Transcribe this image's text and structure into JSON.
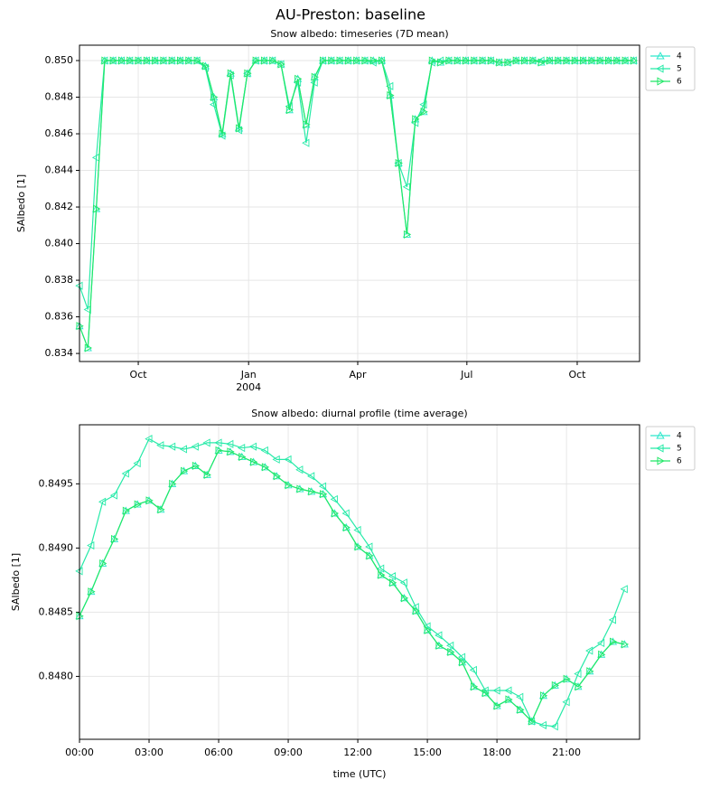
{
  "title": "AU-Preston: baseline",
  "chart_data": [
    {
      "type": "line",
      "title": "Snow albedo: timeseries (7D mean)",
      "ylabel": "SAlbedo [1]",
      "x": [
        "2003-08-13",
        "2003-08-20",
        "2003-08-27",
        "2003-09-03",
        "2003-09-10",
        "2003-09-17",
        "2003-09-24",
        "2003-10-01",
        "2003-10-08",
        "2003-10-15",
        "2003-10-22",
        "2003-10-29",
        "2003-11-05",
        "2003-11-12",
        "2003-11-19",
        "2003-11-26",
        "2003-12-03",
        "2003-12-10",
        "2003-12-17",
        "2003-12-24",
        "2003-12-31",
        "2004-01-07",
        "2004-01-14",
        "2004-01-21",
        "2004-01-28",
        "2004-02-04",
        "2004-02-11",
        "2004-02-18",
        "2004-02-25",
        "2004-03-03",
        "2004-03-10",
        "2004-03-17",
        "2004-03-24",
        "2004-03-31",
        "2004-04-07",
        "2004-04-14",
        "2004-04-21",
        "2004-04-28",
        "2004-05-05",
        "2004-05-12",
        "2004-05-19",
        "2004-05-26",
        "2004-06-02",
        "2004-06-09",
        "2004-06-16",
        "2004-06-23",
        "2004-06-30",
        "2004-07-07",
        "2004-07-14",
        "2004-07-21",
        "2004-07-28",
        "2004-08-04",
        "2004-08-11",
        "2004-08-18",
        "2004-08-25",
        "2004-09-01",
        "2004-09-08",
        "2004-09-15",
        "2004-09-22",
        "2004-09-29",
        "2004-10-06",
        "2004-10-13",
        "2004-10-20",
        "2004-10-27",
        "2004-11-03",
        "2004-11-10",
        "2004-11-17"
      ],
      "series": [
        {
          "name": "4",
          "color": "#2ee8cc",
          "marker": "up",
          "values": [
            0.8355,
            0.8343,
            0.8419,
            0.85,
            0.85,
            0.85,
            0.85,
            0.85,
            0.85,
            0.85,
            0.85,
            0.85,
            0.85,
            0.85,
            0.85,
            0.8497,
            0.848,
            0.846,
            0.8493,
            0.8463,
            0.8493,
            0.85,
            0.85,
            0.85,
            0.8498,
            0.8473,
            0.849,
            0.8465,
            0.8491,
            0.85,
            0.85,
            0.85,
            0.85,
            0.85,
            0.85,
            0.85,
            0.85,
            0.8481,
            0.8444,
            0.8405,
            0.8468,
            0.8472,
            0.85,
            0.8499,
            0.85,
            0.85,
            0.85,
            0.85,
            0.85,
            0.85,
            0.8499,
            0.8499,
            0.85,
            0.85,
            0.85,
            0.8499,
            0.85,
            0.85,
            0.85,
            0.85,
            0.85,
            0.85,
            0.85,
            0.85,
            0.85,
            0.85,
            0.85
          ]
        },
        {
          "name": "5",
          "color": "#26eaa8",
          "marker": "left",
          "values": [
            0.8377,
            0.8364,
            0.8447,
            0.85,
            0.85,
            0.85,
            0.85,
            0.85,
            0.85,
            0.85,
            0.85,
            0.85,
            0.85,
            0.85,
            0.85,
            0.8496,
            0.8476,
            0.8459,
            0.8492,
            0.8462,
            0.8493,
            0.85,
            0.85,
            0.85,
            0.8498,
            0.8475,
            0.8488,
            0.8455,
            0.8488,
            0.85,
            0.85,
            0.85,
            0.85,
            0.85,
            0.85,
            0.8499,
            0.85,
            0.8486,
            0.8444,
            0.8431,
            0.8466,
            0.8476,
            0.8499,
            0.85,
            0.85,
            0.85,
            0.85,
            0.85,
            0.85,
            0.85,
            0.8499,
            0.8499,
            0.85,
            0.85,
            0.85,
            0.85,
            0.85,
            0.85,
            0.85,
            0.85,
            0.85,
            0.85,
            0.85,
            0.85,
            0.85,
            0.85,
            0.85
          ]
        },
        {
          "name": "6",
          "color": "#22e868",
          "marker": "right",
          "values": [
            0.8355,
            0.8343,
            0.8419,
            0.85,
            0.85,
            0.85,
            0.85,
            0.85,
            0.85,
            0.85,
            0.85,
            0.85,
            0.85,
            0.85,
            0.85,
            0.8497,
            0.848,
            0.846,
            0.8493,
            0.8463,
            0.8493,
            0.85,
            0.85,
            0.85,
            0.8498,
            0.8473,
            0.849,
            0.8465,
            0.8491,
            0.85,
            0.85,
            0.85,
            0.85,
            0.85,
            0.85,
            0.85,
            0.85,
            0.8481,
            0.8444,
            0.8405,
            0.8468,
            0.8472,
            0.85,
            0.8499,
            0.85,
            0.85,
            0.85,
            0.85,
            0.85,
            0.85,
            0.8499,
            0.8499,
            0.85,
            0.85,
            0.85,
            0.8499,
            0.85,
            0.85,
            0.85,
            0.85,
            0.85,
            0.85,
            0.85,
            0.85,
            0.85,
            0.85,
            0.85
          ]
        }
      ],
      "xlim": [
        "2003-08-13",
        "2004-11-22"
      ],
      "xticks": [
        {
          "value": "2003-10-01",
          "label": "Oct"
        },
        {
          "value": "2004-01-01",
          "label": "Jan",
          "year": "2004"
        },
        {
          "value": "2004-04-01",
          "label": "Apr"
        },
        {
          "value": "2004-07-01",
          "label": "Jul"
        },
        {
          "value": "2004-10-01",
          "label": "Oct"
        }
      ],
      "ylim": [
        0.83356,
        0.85084
      ],
      "yticks": [
        0.834,
        0.836,
        0.838,
        {
          "value": 0.84,
          "label": "0.840"
        },
        0.842,
        0.844,
        0.846,
        0.848,
        {
          "value": 0.85,
          "label": "0.850"
        }
      ],
      "grid": true,
      "legend": "outside-upper-right"
    },
    {
      "type": "line",
      "title": "Snow albedo: diurnal profile (time average)",
      "ylabel": "SAlbedo [1]",
      "xlabel": "time (UTC)",
      "x": [
        0,
        0.5,
        1,
        1.5,
        2,
        2.5,
        3,
        3.5,
        4,
        4.5,
        5,
        5.5,
        6,
        6.5,
        7,
        7.5,
        8,
        8.5,
        9,
        9.5,
        10,
        10.5,
        11,
        11.5,
        12,
        12.5,
        13,
        13.5,
        14,
        14.5,
        15,
        15.5,
        16,
        16.5,
        17,
        17.5,
        18,
        18.5,
        19,
        19.5,
        20,
        20.5,
        21,
        21.5,
        22,
        22.5,
        23,
        23.5
      ],
      "series": [
        {
          "name": "4",
          "color": "#2ee8cc",
          "marker": "up",
          "values": [
            0.84847,
            0.84866,
            0.84888,
            0.84907,
            0.84929,
            0.84934,
            0.84937,
            0.8493,
            0.8495,
            0.8496,
            0.84964,
            0.84957,
            0.84976,
            0.84975,
            0.84971,
            0.84967,
            0.84963,
            0.84956,
            0.84949,
            0.84946,
            0.84944,
            0.84942,
            0.84927,
            0.84916,
            0.84901,
            0.84894,
            0.84879,
            0.84873,
            0.84861,
            0.84851,
            0.84836,
            0.84824,
            0.84819,
            0.84811,
            0.84792,
            0.84787,
            0.84777,
            0.84782,
            0.84774,
            0.84765,
            0.84785,
            0.84793,
            0.84798,
            0.84792,
            0.84804,
            0.84817,
            0.84827,
            0.84825
          ]
        },
        {
          "name": "5",
          "color": "#26eaa8",
          "marker": "left",
          "values": [
            0.84882,
            0.84902,
            0.84936,
            0.84941,
            0.84958,
            0.84966,
            0.84985,
            0.8498,
            0.84979,
            0.84977,
            0.84979,
            0.84982,
            0.84982,
            0.84981,
            0.84978,
            0.84979,
            0.84976,
            0.84969,
            0.84969,
            0.84961,
            0.84956,
            0.84948,
            0.84938,
            0.84927,
            0.84914,
            0.84901,
            0.84884,
            0.84878,
            0.84873,
            0.84854,
            0.84839,
            0.84832,
            0.84824,
            0.84815,
            0.84805,
            0.84789,
            0.84789,
            0.84789,
            0.84784,
            0.84765,
            0.84762,
            0.84761,
            0.8478,
            0.84802,
            0.8482,
            0.84826,
            0.84844,
            0.84868
          ]
        },
        {
          "name": "6",
          "color": "#22e868",
          "marker": "right",
          "values": [
            0.84847,
            0.84866,
            0.84888,
            0.84907,
            0.84929,
            0.84934,
            0.84937,
            0.8493,
            0.8495,
            0.8496,
            0.84964,
            0.84957,
            0.84976,
            0.84975,
            0.84971,
            0.84967,
            0.84963,
            0.84956,
            0.84949,
            0.84946,
            0.84944,
            0.84942,
            0.84927,
            0.84916,
            0.84901,
            0.84894,
            0.84879,
            0.84873,
            0.84861,
            0.84851,
            0.84836,
            0.84824,
            0.84819,
            0.84811,
            0.84792,
            0.84787,
            0.84777,
            0.84782,
            0.84774,
            0.84765,
            0.84785,
            0.84793,
            0.84798,
            0.84792,
            0.84804,
            0.84817,
            0.84827,
            0.84825
          ]
        }
      ],
      "xlim": [
        0,
        24.15
      ],
      "xticks": [
        {
          "value": 0,
          "label": "00:00"
        },
        {
          "value": 3,
          "label": "03:00"
        },
        {
          "value": 6,
          "label": "06:00"
        },
        {
          "value": 9,
          "label": "09:00"
        },
        {
          "value": 12,
          "label": "12:00"
        },
        {
          "value": 15,
          "label": "15:00"
        },
        {
          "value": 18,
          "label": "18:00"
        },
        {
          "value": 21,
          "label": "21:00"
        }
      ],
      "ylim": [
        0.84751,
        0.84996
      ],
      "yticks": [
        {
          "value": 0.848,
          "label": "0.8480"
        },
        0.8485,
        {
          "value": 0.849,
          "label": "0.8490"
        },
        0.8495
      ],
      "grid": true,
      "legend": "outside-upper-right"
    }
  ]
}
